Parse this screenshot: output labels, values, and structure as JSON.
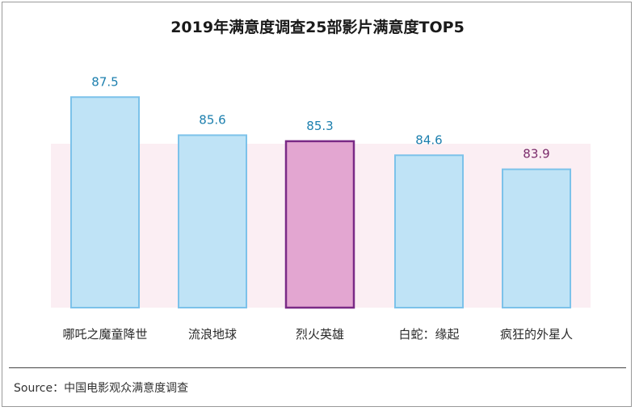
{
  "chart_data": {
    "type": "bar",
    "title": "2019年满意度调查25部影片满意度TOP5",
    "categories": [
      "哪吒之魔童降世",
      "流浪地球",
      "烈火英雄",
      "白蛇：缘起",
      "疯狂的外星人"
    ],
    "values": [
      87.5,
      85.6,
      85.3,
      84.6,
      83.9
    ],
    "value_labels": [
      "87.5",
      "85.6",
      "85.3",
      "84.6",
      "83.9"
    ],
    "highlight_index": 2,
    "grid": false,
    "legend": "none",
    "ylim": [
      77,
      89
    ]
  },
  "source": "Source：中国电影观众满意度调查",
  "colors": {
    "bar_fill": "#bfe3f6",
    "bar_border": "#7cc2ea",
    "highlight_fill": "#e3a6d1",
    "highlight_border": "#7a2a86",
    "value_text": "#1c7fae"
  }
}
